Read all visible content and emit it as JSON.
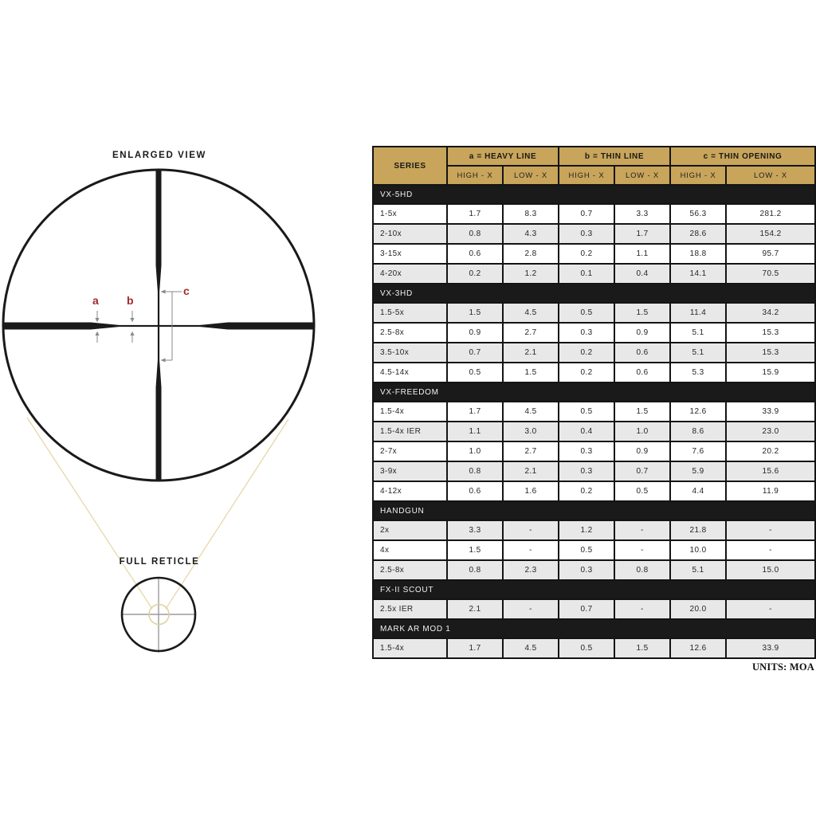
{
  "diagram": {
    "enlarged_view_label": "ENLARGED VIEW",
    "full_reticle_label": "FULL RETICLE",
    "callouts": {
      "a": "a",
      "b": "b",
      "c": "c"
    },
    "colors": {
      "reticle_black": "#1a1a1a",
      "callout_red": "#a22a2a",
      "arrow_gray": "#8a8a8a",
      "magnifier_tan": "#e5d5a3",
      "small_cross_gray": "#9b9b9b"
    }
  },
  "table": {
    "header": {
      "series_label": "SERIES",
      "groups": [
        {
          "label": "a = HEAVY LINE",
          "subs": [
            "HIGH - X",
            "LOW - X"
          ]
        },
        {
          "label": "b = THIN LINE",
          "subs": [
            "HIGH - X",
            "LOW - X"
          ]
        },
        {
          "label": "c = THIN OPENING",
          "subs": [
            "HIGH - X",
            "LOW - X"
          ]
        }
      ]
    },
    "sections": [
      {
        "name": "VX-5HD",
        "rows": [
          {
            "series": "1-5x",
            "values": [
              "1.7",
              "8.3",
              "0.7",
              "3.3",
              "56.3",
              "281.2"
            ],
            "shaded": false
          },
          {
            "series": "2-10x",
            "values": [
              "0.8",
              "4.3",
              "0.3",
              "1.7",
              "28.6",
              "154.2"
            ],
            "shaded": true
          },
          {
            "series": "3-15x",
            "values": [
              "0.6",
              "2.8",
              "0.2",
              "1.1",
              "18.8",
              "95.7"
            ],
            "shaded": false
          },
          {
            "series": "4-20x",
            "values": [
              "0.2",
              "1.2",
              "0.1",
              "0.4",
              "14.1",
              "70.5"
            ],
            "shaded": true
          }
        ]
      },
      {
        "name": "VX-3HD",
        "rows": [
          {
            "series": "1.5-5x",
            "values": [
              "1.5",
              "4.5",
              "0.5",
              "1.5",
              "11.4",
              "34.2"
            ],
            "shaded": true
          },
          {
            "series": "2.5-8x",
            "values": [
              "0.9",
              "2.7",
              "0.3",
              "0.9",
              "5.1",
              "15.3"
            ],
            "shaded": false
          },
          {
            "series": "3.5-10x",
            "values": [
              "0.7",
              "2.1",
              "0.2",
              "0.6",
              "5.1",
              "15.3"
            ],
            "shaded": true
          },
          {
            "series": "4.5-14x",
            "values": [
              "0.5",
              "1.5",
              "0.2",
              "0.6",
              "5.3",
              "15.9"
            ],
            "shaded": false
          }
        ]
      },
      {
        "name": "VX-FREEDOM",
        "rows": [
          {
            "series": "1.5-4x",
            "values": [
              "1.7",
              "4.5",
              "0.5",
              "1.5",
              "12.6",
              "33.9"
            ],
            "shaded": false
          },
          {
            "series": "1.5-4x IER",
            "values": [
              "1.1",
              "3.0",
              "0.4",
              "1.0",
              "8.6",
              "23.0"
            ],
            "shaded": true
          },
          {
            "series": "2-7x",
            "values": [
              "1.0",
              "2.7",
              "0.3",
              "0.9",
              "7.6",
              "20.2"
            ],
            "shaded": false
          },
          {
            "series": "3-9x",
            "values": [
              "0.8",
              "2.1",
              "0.3",
              "0.7",
              "5.9",
              "15.6"
            ],
            "shaded": true
          },
          {
            "series": "4-12x",
            "values": [
              "0.6",
              "1.6",
              "0.2",
              "0.5",
              "4.4",
              "11.9"
            ],
            "shaded": false
          }
        ]
      },
      {
        "name": "HANDGUN",
        "rows": [
          {
            "series": "2x",
            "values": [
              "3.3",
              "-",
              "1.2",
              "-",
              "21.8",
              "-"
            ],
            "shaded": true
          },
          {
            "series": "4x",
            "values": [
              "1.5",
              "-",
              "0.5",
              "-",
              "10.0",
              "-"
            ],
            "shaded": false
          },
          {
            "series": "2.5-8x",
            "values": [
              "0.8",
              "2.3",
              "0.3",
              "0.8",
              "5.1",
              "15.0"
            ],
            "shaded": true
          }
        ]
      },
      {
        "name": "FX-II SCOUT",
        "rows": [
          {
            "series": "2.5x IER",
            "values": [
              "2.1",
              "-",
              "0.7",
              "-",
              "20.0",
              "-"
            ],
            "shaded": true
          }
        ]
      },
      {
        "name": "MARK AR MOD 1",
        "rows": [
          {
            "series": "1.5-4x",
            "values": [
              "1.7",
              "4.5",
              "0.5",
              "1.5",
              "12.6",
              "33.9"
            ],
            "shaded": true
          }
        ]
      }
    ],
    "footnote": "UNITS: MOA",
    "colors": {
      "header_gold": "#c8a55a",
      "section_black": "#1a1a1a",
      "row_shaded": "#e8e8e8",
      "row_plain": "#ffffff",
      "grid_border": "#141414"
    }
  }
}
